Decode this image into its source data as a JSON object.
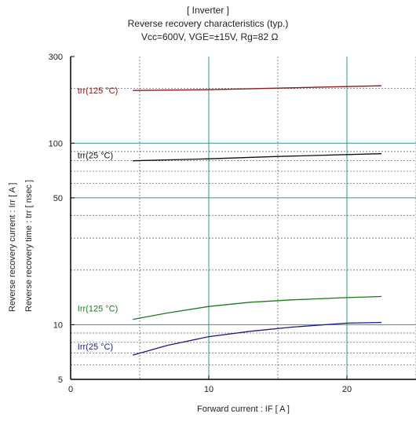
{
  "titles": {
    "line1": "[ Inverter ]",
    "line2": "Reverse recovery characteristics  (typ.)",
    "line3": "Vcc=600V, VGE=±15V, Rg=82    Ω"
  },
  "axes": {
    "ylabel_1": "Reverse recovery current  :  Irr  [ A ]",
    "ylabel_2": "Reverse recovery time  :  trr  [ nsec ]",
    "xlabel": "Forward current  :  IF  [ A ]"
  },
  "colors": {
    "trr125": "#8b1a1a",
    "trr25": "#111111",
    "irr125": "#1e7a1e",
    "irr25": "#1a1a8c",
    "grid": "#2e9a8e",
    "minor_grid": "#555555"
  },
  "chart_data": {
    "type": "line",
    "xlim": [
      0,
      25
    ],
    "ylim": [
      5,
      300
    ],
    "y_scale": "log",
    "x_ticks": [
      "0",
      "10",
      "20"
    ],
    "y_ticks": [
      "5",
      "10",
      "50",
      "100",
      "300"
    ],
    "grid": true,
    "series": [
      {
        "name": "trr(125 °C)",
        "x": [
          4.5,
          10,
          15,
          20,
          22.5
        ],
        "y": [
          195,
          197,
          201,
          205,
          207
        ]
      },
      {
        "name": "trr(25 °C)",
        "x": [
          4.5,
          10,
          15,
          20,
          22.5
        ],
        "y": [
          80,
          82,
          84.5,
          86.5,
          87.5
        ]
      },
      {
        "name": "Irr(125 °C)",
        "x": [
          4.5,
          7,
          10,
          13,
          16,
          20,
          22.5
        ],
        "y": [
          10.7,
          11.6,
          12.6,
          13.3,
          13.7,
          14.1,
          14.3
        ]
      },
      {
        "name": "Irr(25 °C)",
        "x": [
          4.5,
          7,
          10,
          13,
          16,
          20,
          22.5
        ],
        "y": [
          6.8,
          7.7,
          8.6,
          9.2,
          9.7,
          10.2,
          10.3
        ]
      }
    ],
    "series_labels": [
      {
        "text": "trr(125 °C)",
        "x": 0.5,
        "y": 195
      },
      {
        "text": "trr(25 °C)",
        "x": 0.5,
        "y": 86
      },
      {
        "text": "Irr(125 °C)",
        "x": 0.5,
        "y": 12.3
      },
      {
        "text": "Irr(25 °C)",
        "x": 0.5,
        "y": 7.6
      }
    ]
  }
}
